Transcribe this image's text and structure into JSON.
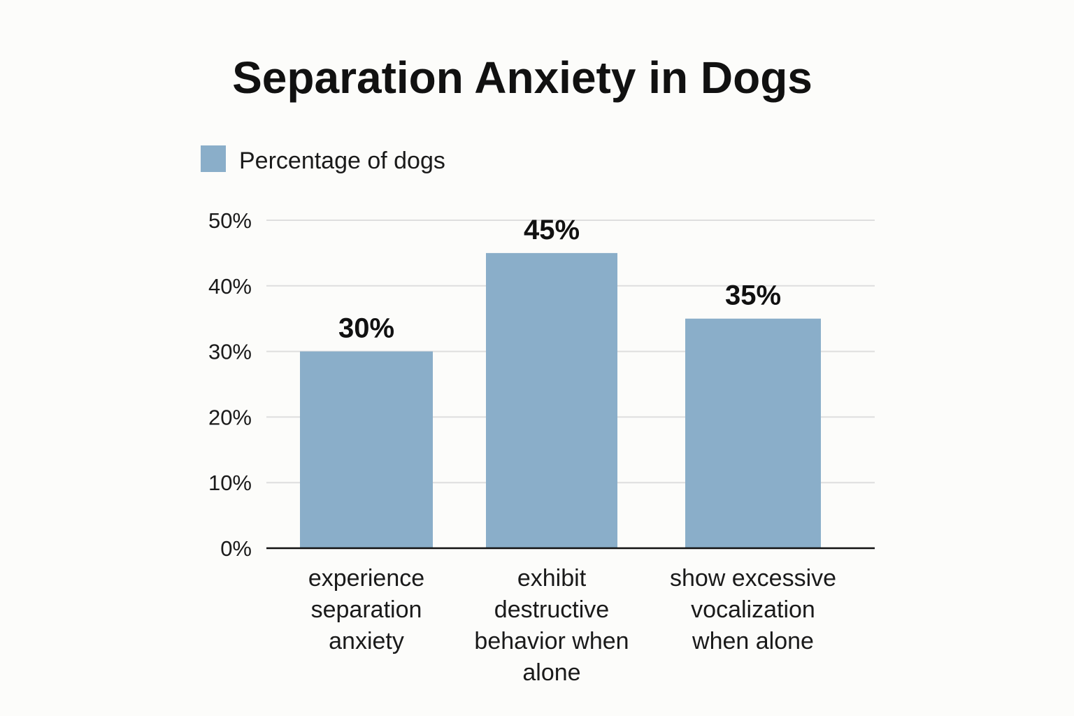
{
  "chart_data": {
    "type": "bar",
    "title": "Separation Anxiety in Dogs",
    "legend": [
      "Percentage of dogs"
    ],
    "legend_position": "top-left",
    "categories": [
      [
        "experience",
        "separation",
        "anxiety"
      ],
      [
        "exhibit",
        "destructive",
        "behavior when",
        "alone"
      ],
      [
        "show excessive",
        "vocalization",
        "when alone"
      ]
    ],
    "series": [
      {
        "name": "Percentage of dogs",
        "values": [
          30,
          45,
          35
        ],
        "labels": [
          "30%",
          "45%",
          "35%"
        ]
      }
    ],
    "y_ticks": [
      {
        "value": 0,
        "label": "0%"
      },
      {
        "value": 10,
        "label": "10%"
      },
      {
        "value": 20,
        "label": "20%"
      },
      {
        "value": 30,
        "label": "30%"
      },
      {
        "value": 40,
        "label": "40%"
      },
      {
        "value": 50,
        "label": "50%"
      }
    ],
    "ylim": [
      0,
      50
    ],
    "xlabel": "",
    "ylabel": "",
    "grid": true,
    "colors": {
      "bar": "#8aaec9",
      "grid": "#dedede",
      "axis": "#111111"
    }
  }
}
